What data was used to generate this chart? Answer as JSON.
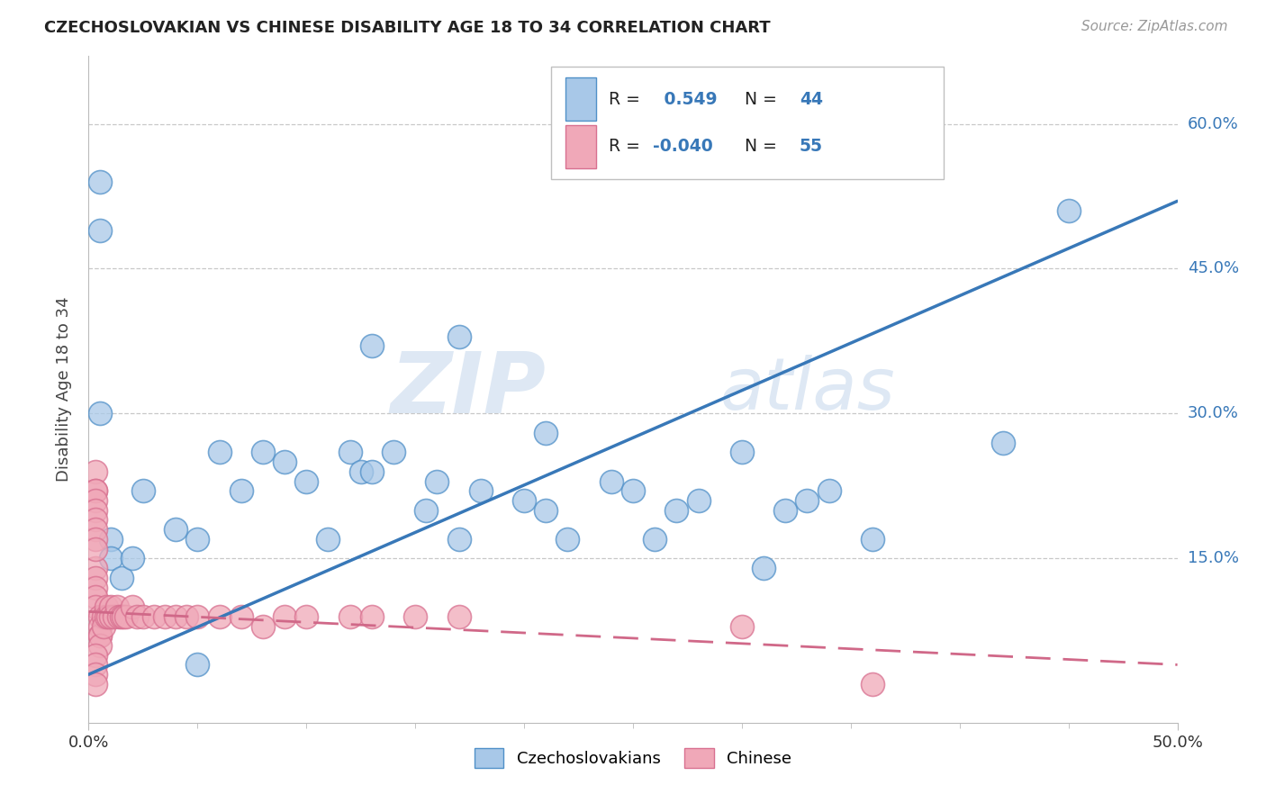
{
  "title": "CZECHOSLOVAKIAN VS CHINESE DISABILITY AGE 18 TO 34 CORRELATION CHART",
  "source": "Source: ZipAtlas.com",
  "ylabel": "Disability Age 18 to 34",
  "xlim": [
    0.0,
    0.5
  ],
  "ylim": [
    -0.02,
    0.67
  ],
  "ytick_positions": [
    0.0,
    0.15,
    0.3,
    0.45,
    0.6
  ],
  "ytick_labels": [
    "0%",
    "15.0%",
    "30.0%",
    "45.0%",
    "60.0%"
  ],
  "xtick_positions": [
    0.0,
    0.5
  ],
  "xtick_labels": [
    "0.0%",
    "50.0%"
  ],
  "grid_color": "#c8c8c8",
  "background_color": "#ffffff",
  "blue_R": 0.549,
  "blue_N": 44,
  "pink_R": -0.04,
  "pink_N": 55,
  "blue_fill": "#a8c8e8",
  "pink_fill": "#f0a8b8",
  "blue_edge": "#5090c8",
  "pink_edge": "#d87090",
  "blue_line_color": "#3878b8",
  "pink_line_color": "#d06888",
  "watermark_zip": "ZIP",
  "watermark_atlas": "atlas",
  "legend_labels": [
    "Czechoslovakians",
    "Chinese"
  ],
  "blue_scatter_x": [
    0.005,
    0.005,
    0.005,
    0.01,
    0.01,
    0.015,
    0.02,
    0.04,
    0.05,
    0.06,
    0.07,
    0.08,
    0.09,
    0.1,
    0.11,
    0.12,
    0.125,
    0.13,
    0.14,
    0.155,
    0.16,
    0.17,
    0.18,
    0.2,
    0.21,
    0.22,
    0.24,
    0.25,
    0.26,
    0.27,
    0.28,
    0.3,
    0.31,
    0.32,
    0.33,
    0.34,
    0.36,
    0.13,
    0.17,
    0.21,
    0.025,
    0.05,
    0.45,
    0.42
  ],
  "blue_scatter_y": [
    0.54,
    0.49,
    0.3,
    0.17,
    0.15,
    0.13,
    0.15,
    0.18,
    0.17,
    0.26,
    0.22,
    0.26,
    0.25,
    0.23,
    0.17,
    0.26,
    0.24,
    0.24,
    0.26,
    0.2,
    0.23,
    0.17,
    0.22,
    0.21,
    0.2,
    0.17,
    0.23,
    0.22,
    0.17,
    0.2,
    0.21,
    0.26,
    0.14,
    0.2,
    0.21,
    0.22,
    0.17,
    0.37,
    0.38,
    0.28,
    0.22,
    0.04,
    0.51,
    0.27
  ],
  "pink_scatter_x": [
    0.003,
    0.003,
    0.003,
    0.003,
    0.003,
    0.003,
    0.003,
    0.003,
    0.003,
    0.003,
    0.003,
    0.003,
    0.003,
    0.005,
    0.005,
    0.005,
    0.005,
    0.005,
    0.007,
    0.007,
    0.008,
    0.008,
    0.009,
    0.01,
    0.01,
    0.012,
    0.013,
    0.014,
    0.015,
    0.016,
    0.017,
    0.02,
    0.022,
    0.025,
    0.03,
    0.035,
    0.04,
    0.045,
    0.05,
    0.06,
    0.07,
    0.08,
    0.09,
    0.1,
    0.12,
    0.13,
    0.15,
    0.17,
    0.3,
    0.36,
    0.003,
    0.003,
    0.003,
    0.003,
    0.003
  ],
  "pink_scatter_y": [
    0.24,
    0.22,
    0.22,
    0.21,
    0.2,
    0.19,
    0.18,
    0.17,
    0.14,
    0.13,
    0.12,
    0.11,
    0.1,
    0.09,
    0.08,
    0.07,
    0.07,
    0.06,
    0.09,
    0.08,
    0.1,
    0.09,
    0.09,
    0.1,
    0.09,
    0.09,
    0.1,
    0.09,
    0.09,
    0.09,
    0.09,
    0.1,
    0.09,
    0.09,
    0.09,
    0.09,
    0.09,
    0.09,
    0.09,
    0.09,
    0.09,
    0.08,
    0.09,
    0.09,
    0.09,
    0.09,
    0.09,
    0.09,
    0.08,
    0.02,
    0.05,
    0.04,
    0.03,
    0.02,
    0.16
  ],
  "blue_line_x": [
    0.0,
    0.5
  ],
  "blue_line_y": [
    0.03,
    0.52
  ],
  "pink_line_x": [
    0.0,
    0.5
  ],
  "pink_line_y": [
    0.095,
    0.04
  ]
}
